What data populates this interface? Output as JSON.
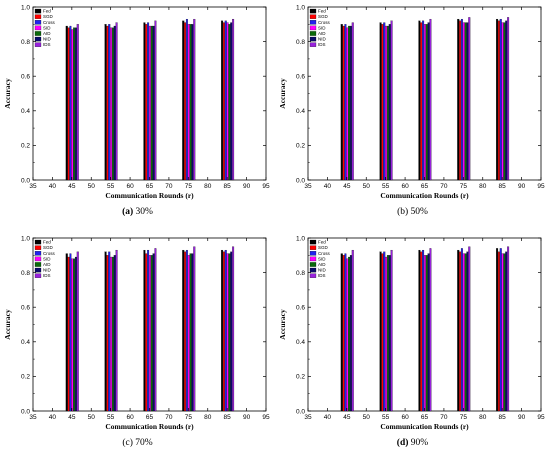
{
  "chart_data": [
    {
      "type": "bar",
      "caption_letter": "(a)",
      "caption_text": "30%",
      "xlabel": "Communication Rounds (r)",
      "ylabel": "Accuracy",
      "xlim": [
        35,
        95
      ],
      "ylim": [
        0.0,
        1.0
      ],
      "xticks": [
        "35",
        "40",
        "45",
        "50",
        "55",
        "60",
        "65",
        "70",
        "75",
        "80",
        "85",
        "90",
        "95"
      ],
      "yticks": [
        "0.0",
        "0.2",
        "0.4",
        "0.6",
        "0.8",
        "1.0"
      ],
      "categories": [
        45,
        55,
        65,
        75,
        85
      ],
      "legend_position": "top-left",
      "series": [
        {
          "name": "Fed",
          "color": "#000000",
          "values": [
            0.89,
            0.9,
            0.91,
            0.92,
            0.92
          ]
        },
        {
          "name": "SGD",
          "color": "#ff0000",
          "values": [
            0.88,
            0.89,
            0.9,
            0.91,
            0.91
          ]
        },
        {
          "name": "Cross",
          "color": "#2222ee",
          "values": [
            0.89,
            0.9,
            0.91,
            0.93,
            0.92
          ]
        },
        {
          "name": "SID",
          "color": "#ff00ff",
          "values": [
            0.87,
            0.88,
            0.89,
            0.9,
            0.91
          ]
        },
        {
          "name": "AID",
          "color": "#0a6a0a",
          "values": [
            0.88,
            0.88,
            0.89,
            0.9,
            0.9
          ]
        },
        {
          "name": "NID",
          "color": "#0a0a6a",
          "values": [
            0.88,
            0.89,
            0.89,
            0.9,
            0.91
          ]
        },
        {
          "name": "IDS",
          "color": "#9922dd",
          "values": [
            0.9,
            0.91,
            0.92,
            0.93,
            0.93
          ]
        }
      ]
    },
    {
      "type": "bar",
      "caption_letter": "(b)",
      "caption_text": "50%",
      "xlabel": "Communication Rounds (r)",
      "ylabel": "Accuracy",
      "xlim": [
        35,
        95
      ],
      "ylim": [
        0.0,
        1.0
      ],
      "xticks": [
        "35",
        "40",
        "45",
        "50",
        "55",
        "60",
        "65",
        "70",
        "75",
        "80",
        "85",
        "90",
        "95"
      ],
      "yticks": [
        "0.0",
        "0.2",
        "0.4",
        "0.6",
        "0.8",
        "1.0"
      ],
      "categories": [
        45,
        55,
        65,
        75,
        85
      ],
      "legend_position": "top-left",
      "series": [
        {
          "name": "Fed",
          "color": "#000000",
          "values": [
            0.9,
            0.91,
            0.92,
            0.93,
            0.93
          ]
        },
        {
          "name": "SGD",
          "color": "#ff0000",
          "values": [
            0.89,
            0.9,
            0.91,
            0.92,
            0.92
          ]
        },
        {
          "name": "Cross",
          "color": "#2222ee",
          "values": [
            0.9,
            0.91,
            0.92,
            0.93,
            0.93
          ]
        },
        {
          "name": "SID",
          "color": "#ff00ff",
          "values": [
            0.88,
            0.89,
            0.9,
            0.91,
            0.91
          ]
        },
        {
          "name": "AID",
          "color": "#0a6a0a",
          "values": [
            0.89,
            0.89,
            0.9,
            0.91,
            0.91
          ]
        },
        {
          "name": "NID",
          "color": "#0a0a6a",
          "values": [
            0.89,
            0.9,
            0.91,
            0.91,
            0.92
          ]
        },
        {
          "name": "IDS",
          "color": "#9922dd",
          "values": [
            0.91,
            0.92,
            0.93,
            0.94,
            0.94
          ]
        }
      ]
    },
    {
      "type": "bar",
      "caption_letter": "(c)",
      "caption_text": "70%",
      "xlabel": "Communication Rounds (r)",
      "ylabel": "Accuracy",
      "xlim": [
        35,
        95
      ],
      "ylim": [
        0.0,
        1.0
      ],
      "xticks": [
        "35",
        "40",
        "45",
        "50",
        "55",
        "60",
        "65",
        "70",
        "75",
        "80",
        "85",
        "90",
        "95"
      ],
      "yticks": [
        "0.0",
        "0.2",
        "0.4",
        "0.6",
        "0.8",
        "1.0"
      ],
      "categories": [
        45,
        55,
        65,
        75,
        85
      ],
      "legend_position": "top-left",
      "series": [
        {
          "name": "Fed",
          "color": "#000000",
          "values": [
            0.91,
            0.92,
            0.93,
            0.93,
            0.93
          ]
        },
        {
          "name": "SGD",
          "color": "#ff0000",
          "values": [
            0.89,
            0.9,
            0.91,
            0.92,
            0.92
          ]
        },
        {
          "name": "Cross",
          "color": "#2222ee",
          "values": [
            0.91,
            0.92,
            0.93,
            0.93,
            0.93
          ]
        },
        {
          "name": "SID",
          "color": "#ff00ff",
          "values": [
            0.88,
            0.89,
            0.9,
            0.9,
            0.91
          ]
        },
        {
          "name": "AID",
          "color": "#0a6a0a",
          "values": [
            0.88,
            0.89,
            0.9,
            0.91,
            0.91
          ]
        },
        {
          "name": "NID",
          "color": "#0a0a6a",
          "values": [
            0.89,
            0.9,
            0.91,
            0.91,
            0.92
          ]
        },
        {
          "name": "IDS",
          "color": "#9922dd",
          "values": [
            0.92,
            0.93,
            0.94,
            0.95,
            0.95
          ]
        }
      ]
    },
    {
      "type": "bar",
      "caption_letter": "(d)",
      "caption_text": "90%",
      "xlabel": "Communication Rounds (r)",
      "ylabel": "Accuracy",
      "xlim": [
        35,
        95
      ],
      "ylim": [
        0.0,
        1.0
      ],
      "xticks": [
        "35",
        "40",
        "45",
        "50",
        "55",
        "60",
        "65",
        "70",
        "75",
        "80",
        "85",
        "90",
        "95"
      ],
      "yticks": [
        "0.0",
        "0.2",
        "0.4",
        "0.6",
        "0.8",
        "1.0"
      ],
      "categories": [
        45,
        55,
        65,
        75,
        85
      ],
      "legend_position": "top-left",
      "series": [
        {
          "name": "Fed",
          "color": "#000000",
          "values": [
            0.91,
            0.92,
            0.93,
            0.93,
            0.94
          ]
        },
        {
          "name": "SGD",
          "color": "#ff0000",
          "values": [
            0.9,
            0.91,
            0.92,
            0.92,
            0.92
          ]
        },
        {
          "name": "Cross",
          "color": "#2222ee",
          "values": [
            0.91,
            0.92,
            0.93,
            0.94,
            0.94
          ]
        },
        {
          "name": "SID",
          "color": "#ff00ff",
          "values": [
            0.88,
            0.89,
            0.9,
            0.91,
            0.91
          ]
        },
        {
          "name": "AID",
          "color": "#0a6a0a",
          "values": [
            0.89,
            0.9,
            0.9,
            0.91,
            0.91
          ]
        },
        {
          "name": "NID",
          "color": "#0a0a6a",
          "values": [
            0.9,
            0.9,
            0.91,
            0.92,
            0.92
          ]
        },
        {
          "name": "IDS",
          "color": "#9922dd",
          "values": [
            0.93,
            0.93,
            0.94,
            0.95,
            0.95
          ]
        }
      ]
    }
  ]
}
